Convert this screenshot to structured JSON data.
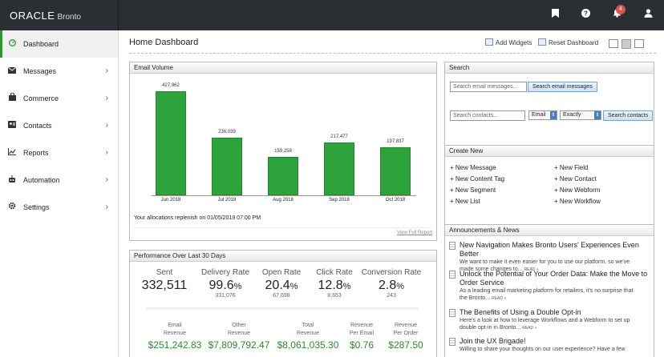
{
  "brand": {
    "oracle": "ORACLE",
    "product": "Bronto"
  },
  "topbar": {
    "notification_count": "4",
    "bookmark_icon": "bookmark-icon",
    "help_icon": "help-icon",
    "bell_icon": "bell-icon",
    "user_icon": "user-icon"
  },
  "sidebar": {
    "items": [
      {
        "label": "Dashboard",
        "icon": "dashboard-icon",
        "active": true
      },
      {
        "label": "Messages",
        "icon": "envelope-icon"
      },
      {
        "label": "Commerce",
        "icon": "bag-icon"
      },
      {
        "label": "Contacts",
        "icon": "contacts-icon"
      },
      {
        "label": "Reports",
        "icon": "chart-icon"
      },
      {
        "label": "Automation",
        "icon": "robot-icon"
      },
      {
        "label": "Settings",
        "icon": "gear-icon"
      }
    ]
  },
  "header": {
    "title": "Home Dashboard",
    "add_widgets": "Add Widgets",
    "reset_dashboard": "Reset Dashboard"
  },
  "email_volume": {
    "title": "Email Volume",
    "allocation_text": "Your allocations replenish on 01/05/2019 07:00 PM",
    "view_full_report": "View Full Report"
  },
  "chart_data": {
    "type": "bar",
    "title": "Email Volume",
    "categories": [
      "Jun 2018",
      "Jul 2018",
      "Aug 2018",
      "Sep 2018",
      "Oct 2018"
    ],
    "values": [
      427962,
      236039,
      159258,
      217477,
      197837
    ],
    "value_labels": [
      "427,962",
      "236,039",
      "159,258",
      "217,477",
      "197,837"
    ],
    "ylim": [
      0,
      427962
    ],
    "color": "#2ea23b"
  },
  "performance": {
    "title": "Performance Over Last 30 Days",
    "metrics": [
      {
        "label": "Sent",
        "value": "332,511",
        "sub": ""
      },
      {
        "label": "Delivery Rate",
        "value": "99.6",
        "unit": "%",
        "sub": "331,076"
      },
      {
        "label": "Open Rate",
        "value": "20.4",
        "unit": "%",
        "sub": "67,698"
      },
      {
        "label": "Click Rate",
        "value": "12.8",
        "unit": "%",
        "sub": "8,653"
      },
      {
        "label": "Conversion Rate",
        "value": "2.8",
        "unit": "%",
        "sub": "243"
      }
    ],
    "revenue": [
      {
        "label1": "Email",
        "label2": "Revenue",
        "value": "$251,242.83"
      },
      {
        "label1": "Other",
        "label2": "Revenue",
        "value": "$7,809,792.47"
      },
      {
        "label1": "Total",
        "label2": "Revenue",
        "value": "$8,061,035.30"
      },
      {
        "label1": "Revenue",
        "label2": "Per Email",
        "value": "$0.76"
      },
      {
        "label1": "Revenue",
        "label2": "Per Order",
        "value": "$287.50"
      }
    ]
  },
  "search": {
    "title": "Search",
    "messages_placeholder": "Search email messages...",
    "messages_button": "Search email messages",
    "contacts_placeholder": "Search contacts...",
    "field_select": "Email",
    "match_select": "Exactly",
    "contacts_button": "Search contacts"
  },
  "create_new": {
    "title": "Create New",
    "left": [
      "+ New Message",
      "+ New Content Tag",
      "+ New Segment",
      "+ New List"
    ],
    "right": [
      "+ New Field",
      "+ New Contact",
      "+ New Webform",
      "+ New Workflow"
    ]
  },
  "news": {
    "title": "Announcements & News",
    "read_more": "READ »",
    "items": [
      {
        "title": "New Navigation Makes Bronto Users' Experiences Even Better",
        "body1": "We want to make it even easier for you to use our platform, so we've",
        "body2": "made some changes to..."
      },
      {
        "title": "Unlock the Potential of Your Order Data: Make the Move to",
        "title2": "Order Service",
        "body1": "As a leading email marketing platform for retailers, it's no surprise that",
        "body2": "the Bronto..."
      },
      {
        "title": "The Benefits of Using a Double Opt-in",
        "body1": "Here's a look at how to leverage Workflows and a Webform to set up",
        "body2": "double opt-in in Bronto..."
      },
      {
        "title": "Join the UX Brigade!",
        "body1": "Willing to share your thoughts on our user experience? Have a few",
        "body2": ""
      }
    ]
  }
}
